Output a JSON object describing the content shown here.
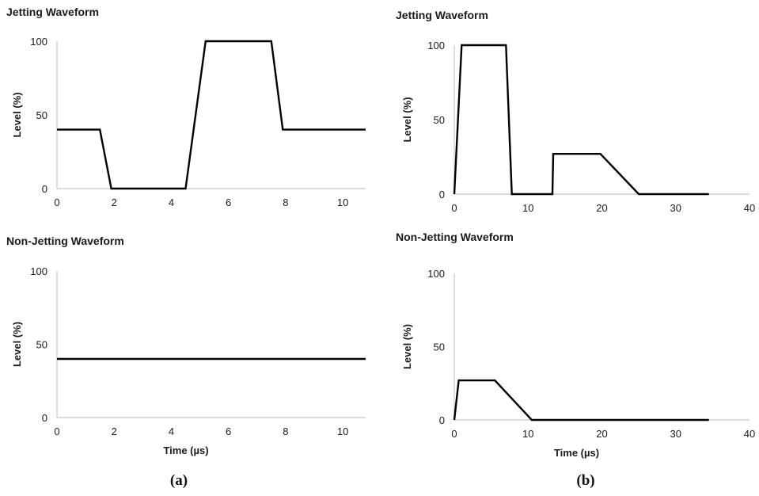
{
  "chart_data": [
    {
      "type": "line",
      "title": "Jetting Waveform",
      "xlabel": "",
      "ylabel": "Level (%)",
      "xlim": [
        0,
        10.8
      ],
      "ylim": [
        0,
        100
      ],
      "xticks": [
        0,
        2,
        4,
        6,
        8,
        10
      ],
      "yticks": [
        0,
        50,
        100
      ],
      "series": [
        {
          "points": [
            [
              0,
              40
            ],
            [
              1.5,
              40
            ],
            [
              1.9,
              0
            ],
            [
              4.5,
              0
            ],
            [
              5.2,
              100
            ],
            [
              7.5,
              100
            ],
            [
              7.9,
              40
            ],
            [
              10.8,
              40
            ]
          ]
        }
      ]
    },
    {
      "type": "line",
      "title": "Jetting Waveform",
      "xlabel": "",
      "ylabel": "Level (%)",
      "xlim": [
        0,
        40
      ],
      "ylim": [
        0,
        100
      ],
      "xticks": [
        0,
        10,
        20,
        30,
        40
      ],
      "yticks": [
        0,
        50,
        100
      ],
      "series": [
        {
          "points": [
            [
              0,
              0
            ],
            [
              1,
              100
            ],
            [
              7,
              100
            ],
            [
              7.8,
              0
            ],
            [
              13.3,
              0
            ],
            [
              13.4,
              27
            ],
            [
              19.8,
              27
            ],
            [
              25,
              0
            ],
            [
              34.5,
              0
            ]
          ]
        }
      ]
    },
    {
      "type": "line",
      "title": "Non-Jetting Waveform",
      "xlabel": "Time (µs)",
      "ylabel": "Level (%)",
      "xlim": [
        0,
        10.8
      ],
      "ylim": [
        0,
        100
      ],
      "xticks": [
        0,
        2,
        4,
        6,
        8,
        10
      ],
      "yticks": [
        0,
        50,
        100
      ],
      "series": [
        {
          "points": [
            [
              0,
              40
            ],
            [
              10.8,
              40
            ]
          ]
        }
      ]
    },
    {
      "type": "line",
      "title": "Non-Jetting Waveform",
      "xlabel": "Time (µs)",
      "ylabel": "Level (%)",
      "xlim": [
        0,
        40
      ],
      "ylim": [
        0,
        100
      ],
      "xticks": [
        0,
        10,
        20,
        30,
        40
      ],
      "yticks": [
        0,
        50,
        100
      ],
      "series": [
        {
          "points": [
            [
              0,
              0
            ],
            [
              0.6,
              27
            ],
            [
              5.5,
              27
            ],
            [
              10.5,
              0
            ],
            [
              34.5,
              0
            ]
          ]
        }
      ]
    }
  ],
  "sublabels": [
    "(a)",
    "(b)"
  ]
}
